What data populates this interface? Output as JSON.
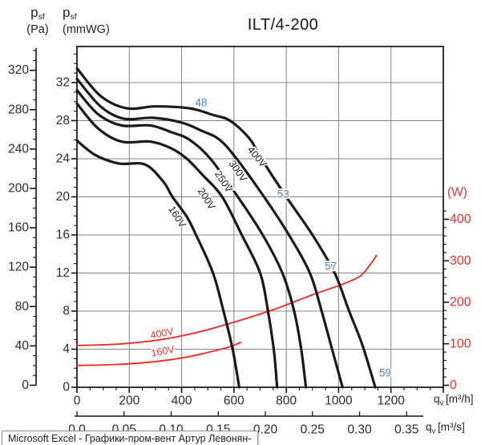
{
  "header": {
    "pa_label": {
      "base": "p",
      "sub": "sf",
      "unit": "(Pa)"
    },
    "mmwg_label": {
      "base": "p",
      "sub": "sf",
      "unit": "(mmWG)"
    },
    "title": "ILT/4-200"
  },
  "window": {
    "tooltip_text": "Microsoft Excel - Графики-пром-вент Артур Левонян-"
  },
  "chart_data": {
    "type": "line",
    "title": "ILT/4-200",
    "axes": {
      "y_left_outer": {
        "name": "static-pressure-Pa",
        "ticks": [
          0,
          40,
          80,
          120,
          160,
          200,
          240,
          280,
          320
        ],
        "minor_step": 10,
        "lim": [
          0,
          340
        ]
      },
      "y_left_inner": {
        "name": "static-pressure-mmWG",
        "ticks": [
          0,
          4,
          8,
          12,
          16,
          20,
          24,
          28,
          32
        ],
        "minor_step": 1,
        "lim": [
          0,
          35.8
        ]
      },
      "y_right": {
        "name": "power-W",
        "unit": "(W)",
        "ticks": [
          0,
          100,
          200,
          300,
          400
        ],
        "minor_step": 20,
        "lim": [
          0,
          430
        ]
      },
      "x_bottom_inner": {
        "name": "flow-m3h",
        "unit_base": "q",
        "unit_sub": "v",
        "unit": "[m³/h]",
        "ticks": [
          0,
          200,
          400,
          600,
          800,
          1000,
          1200
        ],
        "minor_step": 50,
        "lim": [
          0,
          1400
        ]
      },
      "x_bottom_outer": {
        "name": "flow-m3s",
        "unit_base": "q",
        "unit_sub": "v",
        "unit": "[m³/s]",
        "ticks": [
          "0.0",
          "0.05",
          "0.10",
          "0.15",
          "0.20",
          "0.25",
          "0.30",
          "0.35"
        ],
        "step_value": 0.05
      }
    },
    "grid": {
      "x_step_m3h": 200,
      "y_step_mmwg": 4
    },
    "pressure_curves": [
      {
        "label": "160V",
        "points": [
          [
            0,
            25.9
          ],
          [
            70,
            24.4
          ],
          [
            160,
            23.5
          ],
          [
            260,
            23.4
          ],
          [
            330,
            21.6
          ],
          [
            365,
            20.0
          ],
          [
            420,
            17.9
          ],
          [
            455,
            16.0
          ],
          [
            520,
            12.0
          ],
          [
            560,
            8.0
          ],
          [
            595,
            4.0
          ],
          [
            620,
            0
          ]
        ],
        "label_pos": {
          "q": 383,
          "p": 17.9,
          "angle": 57
        }
      },
      {
        "label": "200V",
        "points": [
          [
            0,
            29.8
          ],
          [
            80,
            27.2
          ],
          [
            170,
            25.8
          ],
          [
            280,
            25.8
          ],
          [
            360,
            25.1
          ],
          [
            420,
            24.0
          ],
          [
            480,
            22.3
          ],
          [
            555,
            20.0
          ],
          [
            630,
            16.0
          ],
          [
            700,
            12.0
          ],
          [
            730,
            8.0
          ],
          [
            752,
            4.0
          ],
          [
            765,
            0
          ]
        ],
        "label_pos": {
          "q": 495,
          "p": 19.8,
          "angle": 57
        }
      },
      {
        "label": "250V",
        "points": [
          [
            0,
            31.2
          ],
          [
            80,
            28.7
          ],
          [
            170,
            27.5
          ],
          [
            280,
            27.5
          ],
          [
            360,
            26.8
          ],
          [
            430,
            26.0
          ],
          [
            510,
            24.0
          ],
          [
            615,
            20.0
          ],
          [
            710,
            16.0
          ],
          [
            785,
            12.0
          ],
          [
            830,
            8.0
          ],
          [
            857,
            4.0
          ],
          [
            875,
            0
          ]
        ],
        "label_pos": {
          "q": 560,
          "p": 21.6,
          "angle": 57
        }
      },
      {
        "label": "300V",
        "points": [
          [
            0,
            32.4
          ],
          [
            90,
            29.5
          ],
          [
            180,
            28.2
          ],
          [
            290,
            28.3
          ],
          [
            400,
            27.8
          ],
          [
            480,
            26.9
          ],
          [
            545,
            26.0
          ],
          [
            610,
            24.0
          ],
          [
            715,
            20.0
          ],
          [
            810,
            16.0
          ],
          [
            890,
            12.0
          ],
          [
            935,
            8.0
          ],
          [
            975,
            4.0
          ],
          [
            1015,
            0
          ]
        ],
        "label_pos": {
          "q": 615,
          "p": 22.7,
          "angle": 55
        }
      },
      {
        "label": "400V",
        "points": [
          [
            0,
            33.5
          ],
          [
            90,
            30.6
          ],
          [
            190,
            29.3
          ],
          [
            300,
            29.5
          ],
          [
            430,
            29.3
          ],
          [
            520,
            28.6
          ],
          [
            585,
            28.0
          ],
          [
            660,
            26.1
          ],
          [
            705,
            24.0
          ],
          [
            800,
            20.0
          ],
          [
            900,
            16.0
          ],
          [
            985,
            12.0
          ],
          [
            1040,
            8.0
          ],
          [
            1090,
            4.5
          ],
          [
            1140,
            0
          ]
        ],
        "label_pos": {
          "q": 688,
          "p": 24.2,
          "angle": 50
        }
      }
    ],
    "power_curves": [
      {
        "label": "160V",
        "points": [
          [
            0,
            48
          ],
          [
            150,
            50
          ],
          [
            300,
            57
          ],
          [
            420,
            68
          ],
          [
            520,
            82
          ],
          [
            580,
            92
          ],
          [
            625,
            103
          ]
        ],
        "label_pos": {
          "q": 328,
          "w": 82,
          "angle": -10
        }
      },
      {
        "label": "400V",
        "points": [
          [
            0,
            96
          ],
          [
            150,
            99
          ],
          [
            300,
            108
          ],
          [
            450,
            126
          ],
          [
            600,
            152
          ],
          [
            750,
            182
          ],
          [
            900,
            218
          ],
          [
            1000,
            240
          ],
          [
            1080,
            262
          ],
          [
            1120,
            290
          ],
          [
            1145,
            313
          ]
        ],
        "label_pos": {
          "q": 325,
          "w": 125,
          "angle": -11
        }
      }
    ],
    "noise_labels": [
      {
        "text": "48",
        "q": 475,
        "p": 29.9
      },
      {
        "text": "53",
        "q": 788,
        "p": 20.3
      },
      {
        "text": "57",
        "q": 970,
        "p": 12.7
      },
      {
        "text": "59",
        "q": 1178,
        "p": 1.5
      }
    ],
    "colors": {
      "curve": "#1a1a1a",
      "power": "#e8312f",
      "grid": "#848484",
      "noise": "#4d7cc0",
      "axis": "#141414"
    }
  }
}
